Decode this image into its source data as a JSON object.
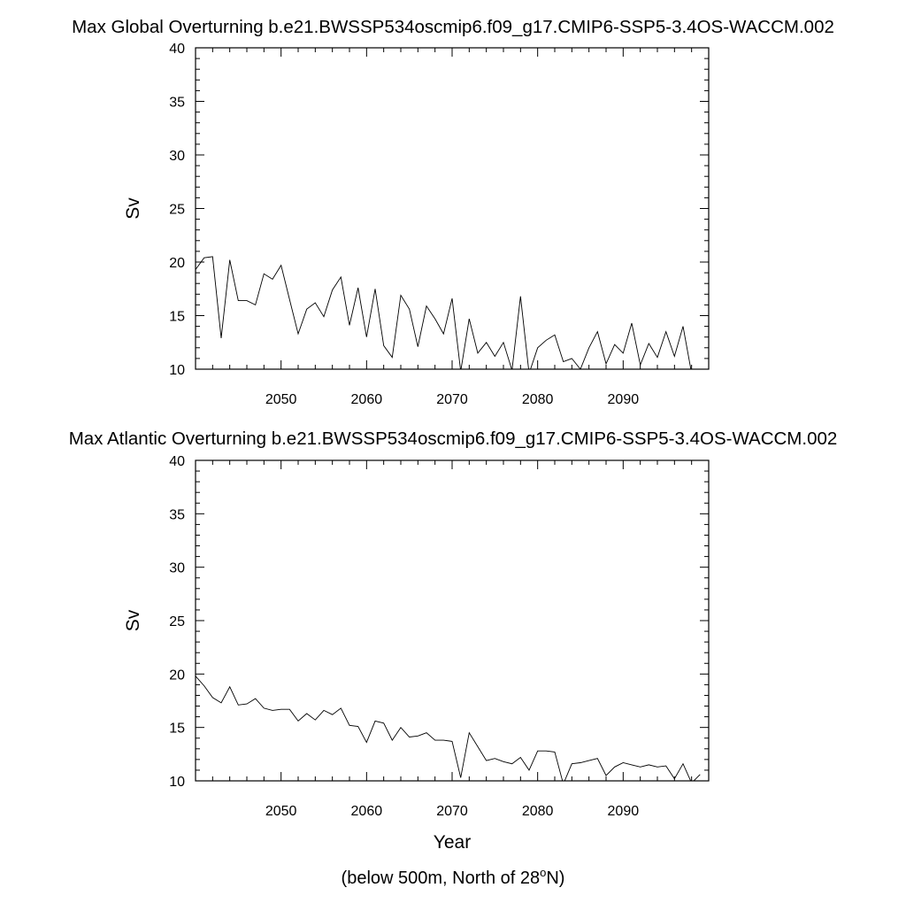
{
  "chart_data": [
    {
      "type": "line",
      "title": "Max Global Overturning b.e21.BWSSP534oscmip6.f09_g17.CMIP6-SSP5-3.4OS-WACCM.002",
      "xlabel": "",
      "ylabel": "Sv",
      "xlim": [
        2040,
        2100
      ],
      "ylim": [
        10,
        40
      ],
      "xticks": [
        "2050",
        "2060",
        "2070",
        "2080",
        "2090"
      ],
      "yticks": [
        "10",
        "15",
        "20",
        "25",
        "30",
        "35",
        "40"
      ],
      "grid": false,
      "x": [
        2040,
        2041,
        2042,
        2043,
        2044,
        2045,
        2046,
        2047,
        2048,
        2049,
        2050,
        2051,
        2052,
        2053,
        2054,
        2055,
        2056,
        2057,
        2058,
        2059,
        2060,
        2061,
        2062,
        2063,
        2064,
        2065,
        2066,
        2067,
        2068,
        2069,
        2070,
        2071,
        2072,
        2073,
        2074,
        2075,
        2076,
        2077,
        2078,
        2079,
        2080,
        2081,
        2082,
        2083,
        2084,
        2085,
        2086,
        2087,
        2088,
        2089,
        2090,
        2091,
        2092,
        2093,
        2094,
        2095,
        2096,
        2097,
        2098,
        2099
      ],
      "y": [
        19.3,
        20.4,
        20.5,
        12.9,
        20.2,
        16.4,
        16.4,
        16.0,
        18.9,
        18.4,
        19.7,
        16.5,
        13.3,
        15.6,
        16.2,
        14.9,
        17.4,
        18.6,
        14.1,
        17.6,
        13.0,
        17.5,
        12.2,
        11.1,
        16.9,
        15.6,
        12.1,
        15.9,
        14.7,
        13.3,
        16.6,
        9.8,
        14.7,
        11.5,
        12.5,
        11.2,
        12.5,
        9.9,
        16.8,
        9.6,
        12.0,
        12.7,
        13.2,
        10.7,
        11.0,
        10.0,
        12.0,
        13.5,
        10.5,
        12.3,
        11.5,
        14.3,
        10.4,
        12.4,
        11.1,
        13.5,
        11.2,
        14.0,
        9.6,
        9.4
      ]
    },
    {
      "type": "line",
      "title": "Max Atlantic Overturning b.e21.BWSSP534oscmip6.f09_g17.CMIP6-SSP5-3.4OS-WACCM.002",
      "xlabel": "Year",
      "ylabel": "Sv",
      "xlim": [
        2040,
        2100
      ],
      "ylim": [
        10,
        40
      ],
      "xticks": [
        "2050",
        "2060",
        "2070",
        "2080",
        "2090"
      ],
      "yticks": [
        "10",
        "15",
        "20",
        "25",
        "30",
        "35",
        "40"
      ],
      "grid": false,
      "x": [
        2040,
        2041,
        2042,
        2043,
        2044,
        2045,
        2046,
        2047,
        2048,
        2049,
        2050,
        2051,
        2052,
        2053,
        2054,
        2055,
        2056,
        2057,
        2058,
        2059,
        2060,
        2061,
        2062,
        2063,
        2064,
        2065,
        2066,
        2067,
        2068,
        2069,
        2070,
        2071,
        2072,
        2073,
        2074,
        2075,
        2076,
        2077,
        2078,
        2079,
        2080,
        2081,
        2082,
        2083,
        2084,
        2085,
        2086,
        2087,
        2088,
        2089,
        2090,
        2091,
        2092,
        2093,
        2094,
        2095,
        2096,
        2097,
        2098,
        2099
      ],
      "y": [
        19.8,
        18.9,
        17.8,
        17.3,
        18.8,
        17.1,
        17.2,
        17.7,
        16.8,
        16.6,
        16.7,
        16.7,
        15.6,
        16.3,
        15.7,
        16.6,
        16.2,
        16.8,
        15.2,
        15.1,
        13.6,
        15.6,
        15.4,
        13.8,
        15.0,
        14.1,
        14.2,
        14.5,
        13.8,
        13.8,
        13.7,
        10.3,
        14.5,
        13.2,
        11.9,
        12.1,
        11.8,
        11.6,
        12.2,
        11.0,
        12.8,
        12.8,
        12.7,
        9.7,
        11.6,
        11.7,
        11.9,
        12.1,
        10.5,
        11.3,
        11.7,
        11.5,
        11.3,
        11.5,
        11.3,
        11.4,
        10.2,
        11.6,
        9.8,
        10.6
      ]
    }
  ],
  "footnote": {
    "prefix": "(below 500m, North of 28",
    "degree": "o",
    "suffix": "N)"
  }
}
